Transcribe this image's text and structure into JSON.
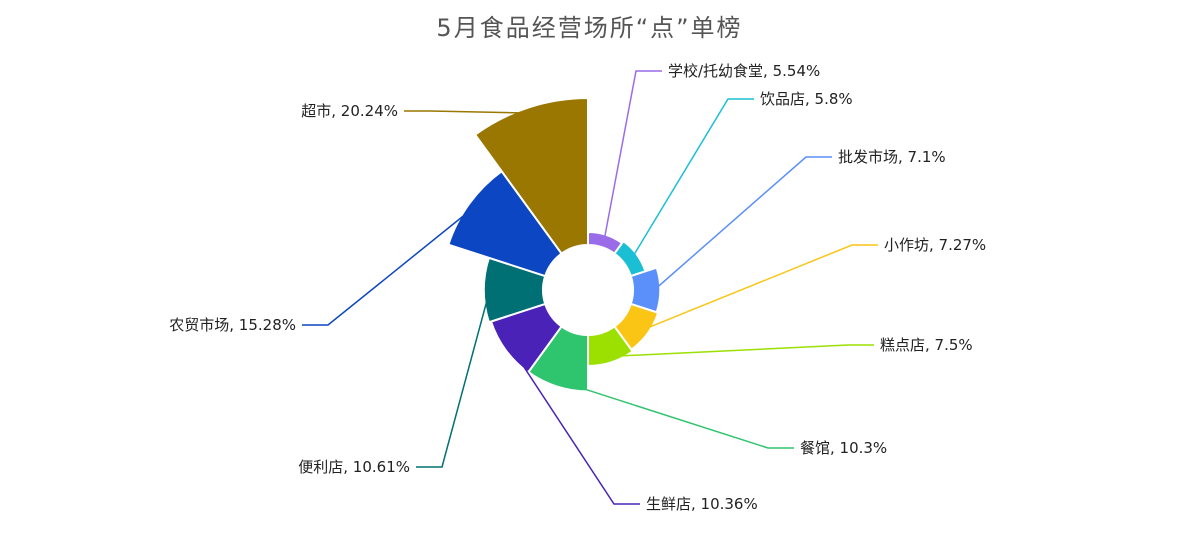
{
  "chart_data": {
    "type": "pie",
    "variant": "rose",
    "title": "5月食品经营场所“点”单榜",
    "categories": [
      "学校/托幼食堂",
      "饮品店",
      "批发市场",
      "小作坊",
      "糕点店",
      "餐馆",
      "生鲜店",
      "便利店",
      "农贸市场",
      "超市"
    ],
    "values": [
      5.54,
      5.8,
      7.1,
      7.27,
      7.5,
      10.3,
      10.36,
      10.61,
      15.28,
      20.24
    ],
    "labels": [
      "学校/托幼食堂, 5.54%",
      "饮品店, 5.8%",
      "批发市场, 7.1%",
      "小作坊, 7.27%",
      "糕点店, 7.5%",
      "餐馆, 10.3%",
      "生鲜店, 10.36%",
      "便利店, 10.61%",
      "农贸市场, 15.28%",
      "超市, 20.24%"
    ],
    "unit": "%",
    "colors": [
      "#9b6ce8",
      "#1bbfd4",
      "#5b8ff9",
      "#fac515",
      "#9be000",
      "#2fc46e",
      "#4a22b8",
      "#017074",
      "#0c46c2",
      "#9a7700"
    ]
  }
}
